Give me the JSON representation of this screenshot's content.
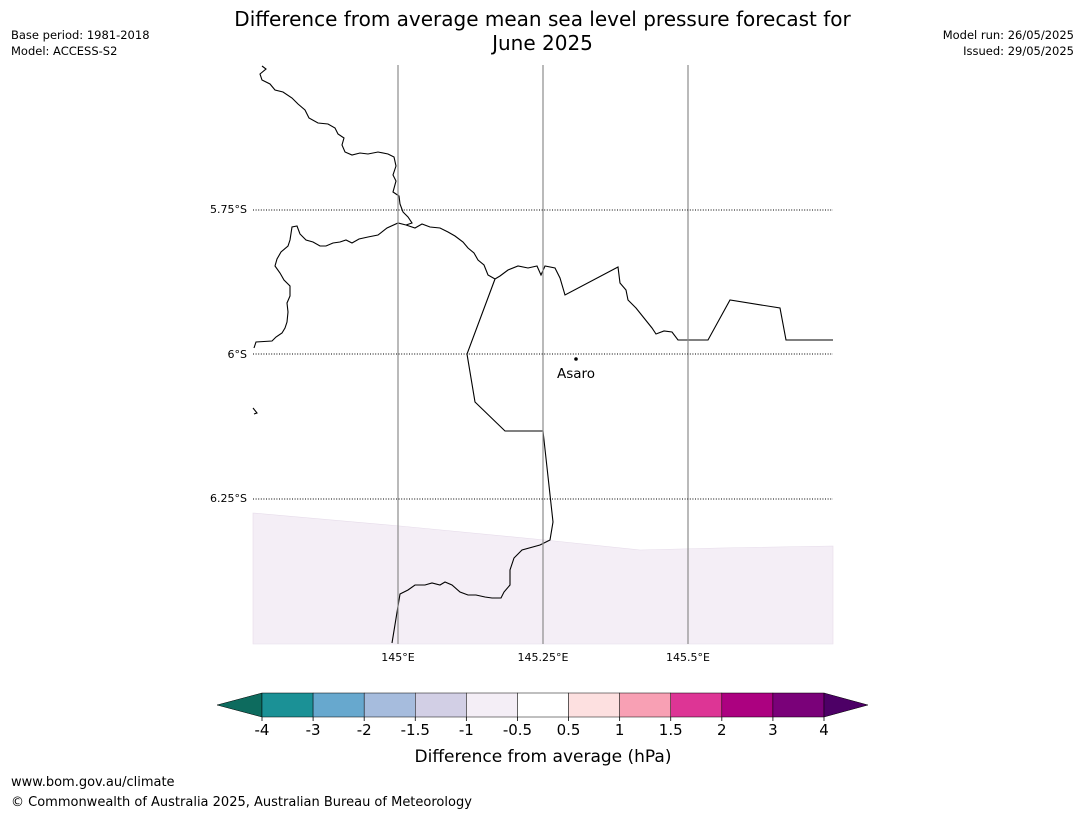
{
  "header": {
    "title_line1": "Difference from average mean sea level pressure forecast for",
    "title_line2": "June 2025",
    "base_period": "Base period: 1981-2018",
    "model": "Model: ACCESS-S2",
    "model_run": "Model run: 26/05/2025",
    "issued": "Issued: 29/05/2025"
  },
  "map": {
    "lon_labels": [
      "145°E",
      "145.25°E",
      "145.5°E"
    ],
    "lat_labels": [
      "5.75°S",
      "6°S",
      "6.25°S"
    ],
    "place": {
      "name": "Asaro"
    },
    "shaded_class": "-1 to -0.5"
  },
  "colorbar": {
    "label": "Difference from average (hPa)",
    "ticks": [
      "-4",
      "-3",
      "-2",
      "-1.5",
      "-1",
      "-0.5",
      "0.5",
      "1",
      "1.5",
      "2",
      "3",
      "4"
    ],
    "low_extend_color": "#0d6b5e",
    "high_extend_color": "#4d0066",
    "segment_colors": [
      "#1b9196",
      "#67a8ce",
      "#a6bcdd",
      "#d2cfe5",
      "#f4eef6",
      "#ffffff",
      "#fde0e0",
      "#f8a0b4",
      "#dd3595",
      "#ac0180",
      "#7a0179"
    ]
  },
  "footer": {
    "url": "www.bom.gov.au/climate",
    "copyright": "© Commonwealth of Australia 2025, Australian Bureau of Meteorology"
  }
}
